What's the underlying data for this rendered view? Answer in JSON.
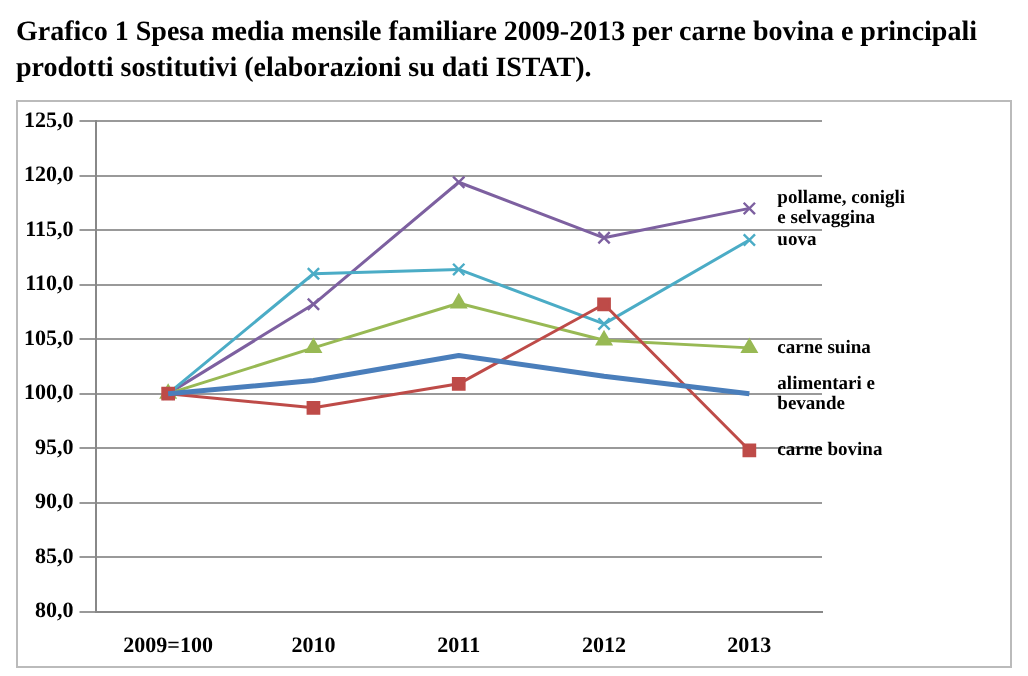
{
  "chart_data": {
    "type": "line",
    "title": "Grafico 1 Spesa media mensile familiare 2009-2013 per carne bovina e principali prodotti sostitutivi (elaborazioni su dati ISTAT).",
    "categories": [
      "2009=100",
      "2010",
      "2011",
      "2012",
      "2013"
    ],
    "series": [
      {
        "name": "alimentari e\nbevande",
        "color": "#4a7ebb",
        "marker": "none",
        "values": [
          100.0,
          101.2,
          103.5,
          101.6,
          100.0
        ]
      },
      {
        "name": "carne bovina",
        "color": "#be4b48",
        "marker": "square",
        "values": [
          100.0,
          98.7,
          100.9,
          108.2,
          94.8
        ]
      },
      {
        "name": "carne suina",
        "color": "#98b954",
        "marker": "triangle",
        "values": [
          100.0,
          104.2,
          108.3,
          104.9,
          104.2
        ]
      },
      {
        "name": "uova",
        "color": "#4bacc6",
        "marker": "cross",
        "values": [
          100.0,
          111.0,
          111.4,
          106.4,
          114.1
        ]
      },
      {
        "name": "pollame, conigli\ne selvaggina",
        "color": "#7d60a0",
        "marker": "cross",
        "values": [
          100.0,
          108.2,
          119.4,
          114.3,
          117.0
        ]
      }
    ],
    "ylim": [
      80,
      125
    ],
    "yticks": [
      {
        "value": 80,
        "label": "80,0"
      },
      {
        "value": 85,
        "label": "85,0"
      },
      {
        "value": 90,
        "label": "90,0"
      },
      {
        "value": 95,
        "label": "95,0"
      },
      {
        "value": 100,
        "label": "100,0"
      },
      {
        "value": 105,
        "label": "105,0"
      },
      {
        "value": 110,
        "label": "110,0"
      },
      {
        "value": 115,
        "label": "115,0"
      },
      {
        "value": 120,
        "label": "120,0"
      },
      {
        "value": 125,
        "label": "125,0"
      }
    ],
    "grid": "y",
    "legend": false,
    "line_style": "solid"
  }
}
